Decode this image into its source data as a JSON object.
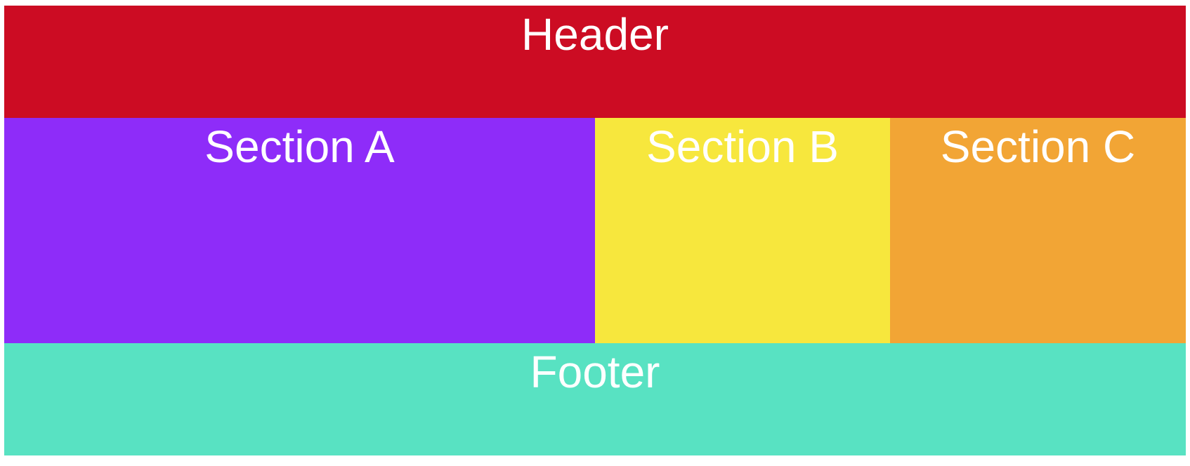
{
  "layout": {
    "header": {
      "label": "Header",
      "color": "#CC0C23"
    },
    "sections": [
      {
        "label": "Section A",
        "color": "#8E2CF9"
      },
      {
        "label": "Section B",
        "color": "#F7E73D"
      },
      {
        "label": "Section C",
        "color": "#F2A535"
      }
    ],
    "footer": {
      "label": "Footer",
      "color": "#58E2C2"
    },
    "text_color": "#FFFFFF"
  }
}
